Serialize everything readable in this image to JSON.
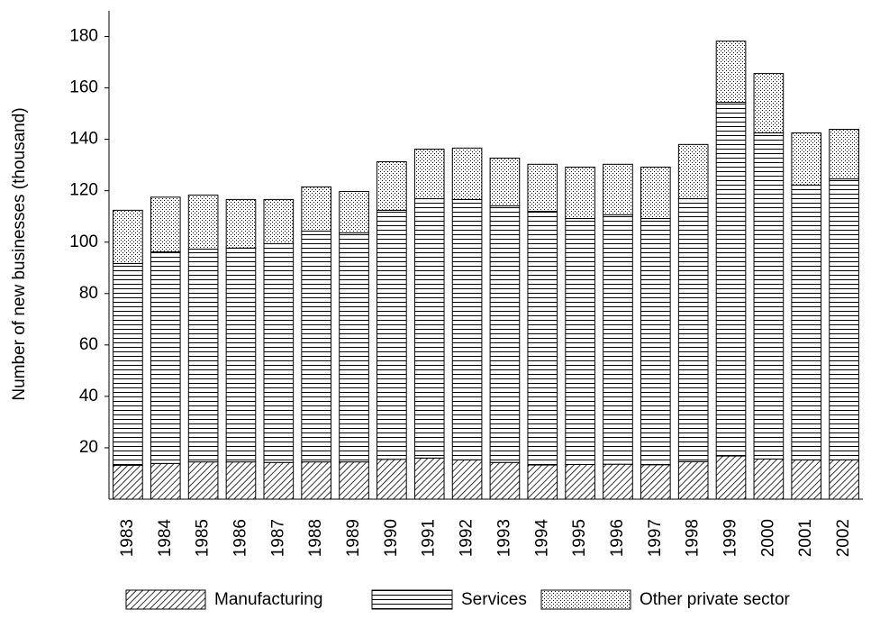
{
  "chart_data": {
    "type": "stacked_bar",
    "y_label": "Number of new businesses (thousand)",
    "categories": [
      "1983",
      "1984",
      "1985",
      "1986",
      "1987",
      "1988",
      "1989",
      "1990",
      "1991",
      "1992",
      "1993",
      "1994",
      "1995",
      "1996",
      "1997",
      "1998",
      "1999",
      "2000",
      "2001",
      "2002"
    ],
    "series": [
      {
        "name": "Manufacturing",
        "color": "#000000",
        "pattern": "diagonal",
        "values": [
          13.2,
          13.9,
          14.5,
          14.5,
          14.3,
          14.5,
          14.5,
          15.5,
          16,
          15.3,
          14.3,
          13.3,
          13.5,
          13.6,
          13.4,
          14.6,
          16.8,
          15.6,
          15.3,
          15.3
        ]
      },
      {
        "name": "Services",
        "color": "#000000",
        "pattern": "horizontal",
        "values": [
          78.5,
          82.3,
          82.8,
          83.2,
          85.1,
          89.8,
          89.1,
          96.9,
          100.9,
          101.3,
          99.8,
          98.7,
          95.7,
          97,
          95.8,
          102.3,
          137.6,
          126.9,
          106.9,
          109.3
        ]
      },
      {
        "name": "Other private sector",
        "color": "#000000",
        "pattern": "dots",
        "values": [
          20.7,
          21.3,
          21,
          18.9,
          17.2,
          17.2,
          16.1,
          18.9,
          19.3,
          20,
          18.6,
          18.3,
          20,
          19.7,
          20,
          21.1,
          23.8,
          23.1,
          20.3,
          19.3
        ]
      }
    ],
    "ylim": [
      0,
      190
    ],
    "yticks": [
      20,
      40,
      60,
      80,
      100,
      120,
      140,
      160,
      180
    ],
    "grid": false
  }
}
